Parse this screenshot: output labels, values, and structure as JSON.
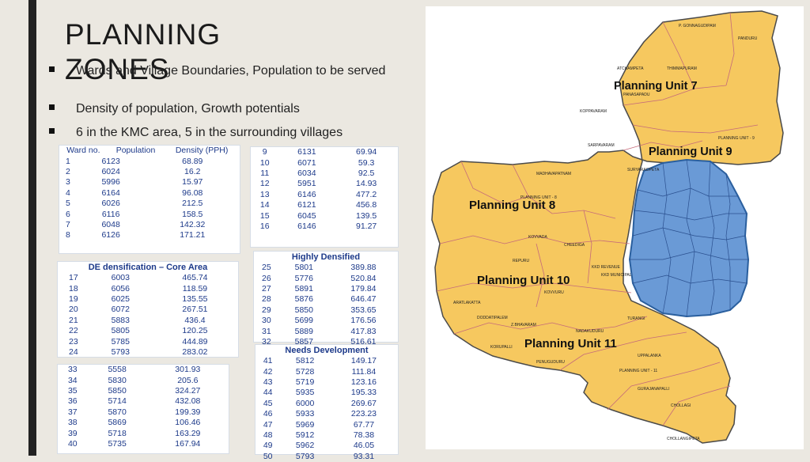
{
  "title": "PLANNING ZONES",
  "bullets": [
    "Wards and Village Boundaries, Population to be served",
    "Density of population, Growth potentials",
    "6 in the KMC area, 5 in the surrounding villages"
  ],
  "tables": {
    "t1": {
      "headers": [
        "Ward no.",
        "Population",
        "Density (PPH)"
      ],
      "rows": [
        [
          "1",
          "6123",
          "68.89"
        ],
        [
          "2",
          "6024",
          "16.2"
        ],
        [
          "3",
          "5996",
          "15.97"
        ],
        [
          "4",
          "6164",
          "96.08"
        ],
        [
          "5",
          "6026",
          "212.5"
        ],
        [
          "6",
          "6116",
          "158.5"
        ],
        [
          "7",
          "6048",
          "142.32"
        ],
        [
          "8",
          "6126",
          "171.21"
        ]
      ]
    },
    "t2": {
      "rows": [
        [
          "9",
          "6131",
          "69.94"
        ],
        [
          "10",
          "6071",
          "59.3"
        ],
        [
          "11",
          "6034",
          "92.5"
        ],
        [
          "12",
          "5951",
          "14.93"
        ],
        [
          "13",
          "6146",
          "477.2"
        ],
        [
          "14",
          "6121",
          "456.8"
        ],
        [
          "15",
          "6045",
          "139.5"
        ],
        [
          "16",
          "6146",
          "91.27"
        ]
      ]
    },
    "t3": {
      "section": "DE densification – Core Area",
      "rows": [
        [
          "17",
          "6003",
          "465.74"
        ],
        [
          "18",
          "6056",
          "118.59"
        ],
        [
          "19",
          "6025",
          "135.55"
        ],
        [
          "20",
          "6072",
          "267.51"
        ],
        [
          "21",
          "5883",
          "436.4"
        ],
        [
          "22",
          "5805",
          "120.25"
        ],
        [
          "23",
          "5785",
          "444.89"
        ],
        [
          "24",
          "5793",
          "283.02"
        ]
      ]
    },
    "t4": {
      "section": "Highly Densified",
      "rows": [
        [
          "25",
          "5801",
          "389.88"
        ],
        [
          "26",
          "5776",
          "520.84"
        ],
        [
          "27",
          "5891",
          "179.84"
        ],
        [
          "28",
          "5876",
          "646.47"
        ],
        [
          "29",
          "5850",
          "353.65"
        ],
        [
          "30",
          "5699",
          "176.56"
        ],
        [
          "31",
          "5889",
          "417.83"
        ],
        [
          "32",
          "5857",
          "516.61"
        ]
      ]
    },
    "t5": {
      "rows": [
        [
          "33",
          "5558",
          "301.93"
        ],
        [
          "34",
          "5830",
          "205.6"
        ],
        [
          "35",
          "5850",
          "324.27"
        ],
        [
          "36",
          "5714",
          "432.08"
        ],
        [
          "37",
          "5870",
          "199.39"
        ],
        [
          "38",
          "5869",
          "106.46"
        ],
        [
          "39",
          "5718",
          "163.29"
        ],
        [
          "40",
          "5735",
          "167.94"
        ]
      ]
    },
    "t6": {
      "section": "Needs Development",
      "rows": [
        [
          "41",
          "5812",
          "149.17"
        ],
        [
          "42",
          "5728",
          "111.84"
        ],
        [
          "43",
          "5719",
          "123.16"
        ],
        [
          "44",
          "5935",
          "195.33"
        ],
        [
          "45",
          "6000",
          "269.67"
        ],
        [
          "46",
          "5933",
          "223.23"
        ],
        [
          "47",
          "5969",
          "67.77"
        ],
        [
          "48",
          "5912",
          "78.38"
        ],
        [
          "49",
          "5962",
          "46.05"
        ],
        [
          "50",
          "5793",
          "93.31"
        ]
      ]
    }
  },
  "map": {
    "units": [
      "Planning Unit 7",
      "Planning Unit 9",
      "Planning Unit 8",
      "Planning Unit 10",
      "Planning Unit 11"
    ],
    "villages": [
      "P. GONNAGUDIPAM",
      "PANDURU",
      "ATCHAMPETA",
      "THIMMAPURAM",
      "PANASAPADU",
      "KOPPAVARAM",
      "SARPAVARAM",
      "MADHAVAPATNAM",
      "SURYARAOPETA",
      "KOVVADA",
      "CHEEDIGA",
      "REPURU",
      "KOVVURU",
      "ARATLAKATTA",
      "DODDATIPALEM",
      "Z.BHAVARAM",
      "TURANGI",
      "NADAKUDURU",
      "KORUPALLI",
      "PENUGUDURU",
      "UPPALANKA",
      "GURAJANAPALLI",
      "CHOLLAGI",
      "CHOLLANGIPETA",
      "PLANNING UNIT - 11",
      "PLANNING UNIT - 9",
      "PLANNING UNIT - 8",
      "KKD REVENUE",
      "KKD MUNICIPAL"
    ]
  },
  "colors": {
    "accent": "#f5c65a",
    "kmc": "#6a9ad6",
    "border": "#333333"
  }
}
